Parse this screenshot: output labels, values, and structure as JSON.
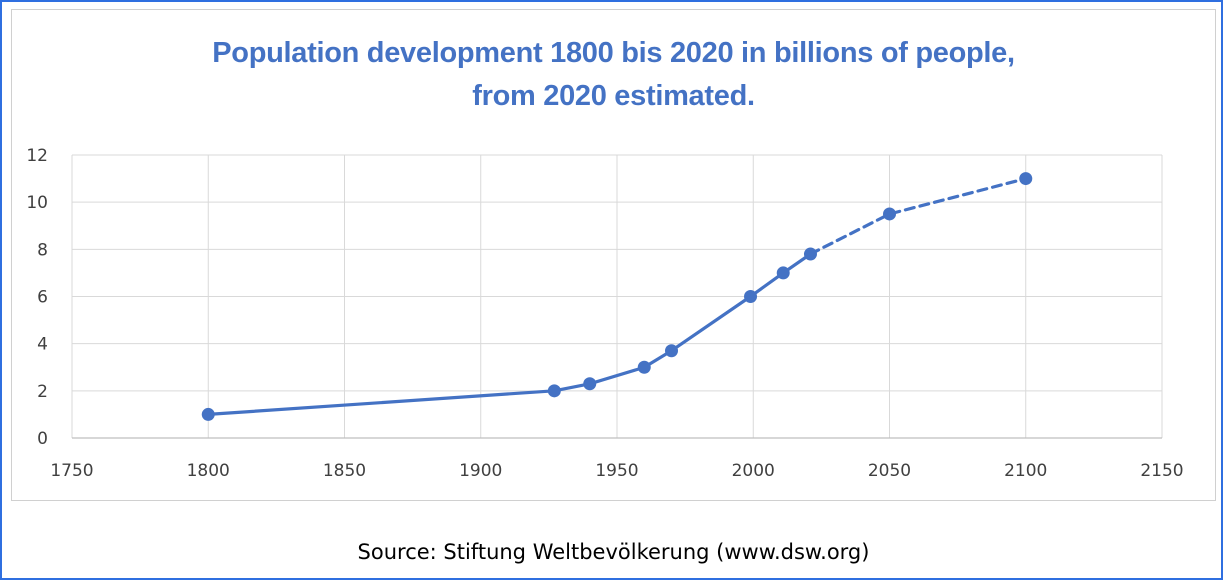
{
  "chart_data": {
    "type": "line",
    "title_lines": [
      "Population development 1800 bis 2020 in billions of people,",
      "from 2020 estimated."
    ],
    "xlabel": "",
    "ylabel": "",
    "xlim": [
      1750,
      2150
    ],
    "ylim": [
      0,
      12
    ],
    "x_ticks": [
      "1750",
      "1800",
      "1850",
      "1900",
      "1950",
      "2000",
      "2050",
      "2100",
      "2150"
    ],
    "y_ticks": [
      "0",
      "2",
      "4",
      "6",
      "8",
      "10",
      "12"
    ],
    "grid": true,
    "legend": "none",
    "series": [
      {
        "style": "solid",
        "x": [
          1800,
          1927,
          1940,
          1960,
          1970,
          1999,
          2011,
          2021
        ],
        "y": [
          1.0,
          2.0,
          2.3,
          3.0,
          3.7,
          6.0,
          7.0,
          7.8
        ]
      },
      {
        "style": "dashed",
        "x": [
          2021,
          2050,
          2100
        ],
        "y": [
          7.8,
          9.5,
          11.0
        ]
      }
    ],
    "colors": {
      "line": "#4472c4",
      "grid": "#d9d9d9",
      "title": "#4472c4"
    }
  },
  "source_text": "Source: Stiftung Weltbevölkerung (www.dsw.org)"
}
